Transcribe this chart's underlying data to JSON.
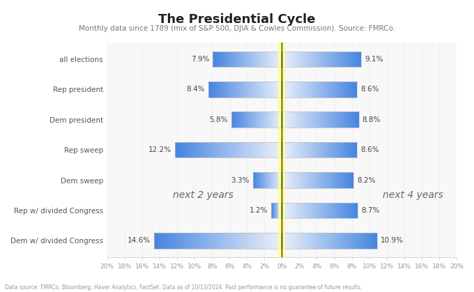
{
  "title": "The Presidential Cycle",
  "subtitle": "Monthly data since 1789 (mix of S&P 500, DJIA & Cowles Commission). Source: FMRCo.",
  "footnote": "Data source: FMRCo, Bloomberg, Haver Analytics, FactSet. Data as of 10/13/2024. Past performance is no guarantee of future results.",
  "categories": [
    "all elections",
    "Rep president",
    "Dem president",
    "Rep sweep",
    "Dem sweep",
    "Rep w/ divided Congress",
    "Dem w/ divided Congress"
  ],
  "left_values": [
    7.9,
    8.4,
    5.8,
    12.2,
    3.3,
    1.2,
    14.6
  ],
  "right_values": [
    9.1,
    8.6,
    8.8,
    8.6,
    8.2,
    8.7,
    10.9
  ],
  "left_label": "next 2 years",
  "right_label": "next 4 years",
  "xlim": 20,
  "title_fontsize": 13,
  "subtitle_fontsize": 7.5,
  "axis_tick_fontsize": 6.5,
  "label_fontsize": 7.5,
  "value_fontsize": 7.5,
  "annotation_fontsize": 10,
  "bar_blue": [
    0.27,
    0.52,
    0.88
  ],
  "bar_white": [
    0.92,
    0.94,
    0.98
  ],
  "center_line_yellow": "#ffff00",
  "bg_color": "#ffffff",
  "plot_bg": "#f8f8f8"
}
